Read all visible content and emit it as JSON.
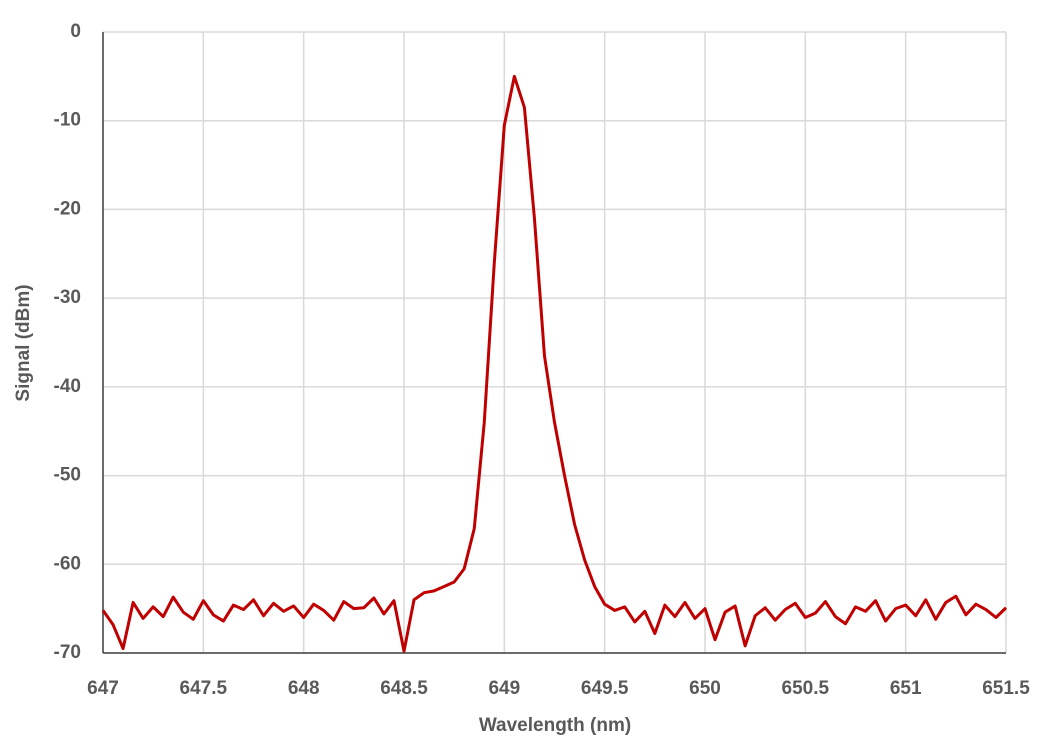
{
  "chart_data": {
    "type": "line",
    "x_label": "Wavelength (nm)",
    "y_label": "Signal (dBm)",
    "xlim": [
      647,
      651.5
    ],
    "xticks": [
      647,
      647.5,
      648,
      648.5,
      649,
      649.5,
      650,
      650.5,
      651,
      651.5
    ],
    "ylim": [
      -70,
      0
    ],
    "yticks": [
      0,
      -10,
      -20,
      -30,
      -40,
      -50,
      -60,
      -70
    ],
    "grid": true,
    "x": [
      647,
      647.05,
      647.1,
      647.15,
      647.2,
      647.25,
      647.3,
      647.35,
      647.4,
      647.45,
      647.5,
      647.55,
      647.6,
      647.65,
      647.7,
      647.75,
      647.8,
      647.85,
      647.9,
      647.95,
      648,
      648.05,
      648.1,
      648.15,
      648.2,
      648.25,
      648.3,
      648.35,
      648.4,
      648.45,
      648.5,
      648.55,
      648.6,
      648.65,
      648.7,
      648.75,
      648.8,
      648.85,
      648.9,
      648.95,
      649,
      649.05,
      649.1,
      649.15,
      649.2,
      649.25,
      649.3,
      649.35,
      649.4,
      649.45,
      649.5,
      649.55,
      649.6,
      649.65,
      649.7,
      649.75,
      649.8,
      649.85,
      649.9,
      649.95,
      650,
      650.05,
      650.1,
      650.15,
      650.2,
      650.25,
      650.3,
      650.35,
      650.4,
      650.45,
      650.5,
      650.55,
      650.6,
      650.65,
      650.7,
      650.75,
      650.8,
      650.85,
      650.9,
      650.95,
      651,
      651.05,
      651.1,
      651.15,
      651.2,
      651.25,
      651.3,
      651.35,
      651.4,
      651.45,
      651.5
    ],
    "series": [
      {
        "color": "#c00000",
        "values": [
          -65.2,
          -66.8,
          -69.5,
          -64.3,
          -66.1,
          -64.8,
          -65.9,
          -63.7,
          -65.4,
          -66.2,
          -64.1,
          -65.7,
          -66.4,
          -64.6,
          -65.1,
          -64.0,
          -65.8,
          -64.4,
          -65.3,
          -64.7,
          -66.0,
          -64.5,
          -65.2,
          -66.3,
          -64.2,
          -65.0,
          -64.9,
          -63.8,
          -65.6,
          -64.1,
          -69.8,
          -64.0,
          -63.2,
          -63.0,
          -62.5,
          -62.0,
          -60.5,
          -56.0,
          -44.0,
          -26.0,
          -10.5,
          -5.0,
          -8.5,
          -21.0,
          -36.5,
          -44.0,
          -50.0,
          -55.5,
          -59.5,
          -62.5,
          -64.5,
          -65.2,
          -64.8,
          -66.5,
          -65.3,
          -67.8,
          -64.6,
          -65.9,
          -64.3,
          -66.1,
          -65.0,
          -68.5,
          -65.4,
          -64.7,
          -69.2,
          -65.8,
          -64.9,
          -66.3,
          -65.1,
          -64.4,
          -66.0,
          -65.5,
          -64.2,
          -65.9,
          -66.7,
          -64.8,
          -65.3,
          -64.1,
          -66.4,
          -65.0,
          -64.6,
          -65.8,
          -64.0,
          -66.2,
          -64.3,
          -63.6,
          -65.7,
          -64.5,
          -65.1,
          -66.0,
          -64.9
        ]
      }
    ]
  }
}
